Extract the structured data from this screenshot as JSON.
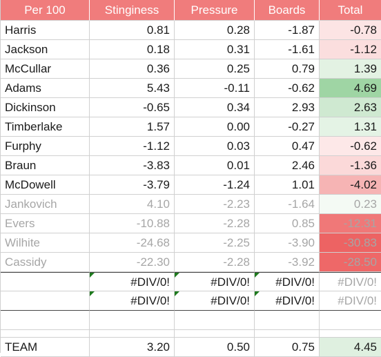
{
  "columns": [
    "Per 100",
    "Stinginess",
    "Pressure",
    "Boards",
    "Total"
  ],
  "rows": [
    {
      "name": "Harris",
      "stinginess": "0.81",
      "pressure": "0.28",
      "boards": "-1.87",
      "total": "-0.78",
      "total_color": "#fce4e4",
      "gray": false
    },
    {
      "name": "Jackson",
      "stinginess": "0.18",
      "pressure": "0.31",
      "boards": "-1.61",
      "total": "-1.12",
      "total_color": "#fbdede",
      "gray": false
    },
    {
      "name": "McCullar",
      "stinginess": "0.36",
      "pressure": "0.25",
      "boards": "0.79",
      "total": "1.39",
      "total_color": "#e3f2e3",
      "gray": false
    },
    {
      "name": "Adams",
      "stinginess": "5.43",
      "pressure": "-0.11",
      "boards": "-0.62",
      "total": "4.69",
      "total_color": "#9fd5a4",
      "gray": false
    },
    {
      "name": "Dickinson",
      "stinginess": "-0.65",
      "pressure": "0.34",
      "boards": "2.93",
      "total": "2.63",
      "total_color": "#cfe9d1",
      "gray": false
    },
    {
      "name": "Timberlake",
      "stinginess": "1.57",
      "pressure": "0.00",
      "boards": "-0.27",
      "total": "1.31",
      "total_color": "#e4f3e5",
      "gray": false
    },
    {
      "name": "Furphy",
      "stinginess": "-1.12",
      "pressure": "0.03",
      "boards": "0.47",
      "total": "-0.62",
      "total_color": "#fde8e8",
      "gray": false
    },
    {
      "name": "Braun",
      "stinginess": "-3.83",
      "pressure": "0.01",
      "boards": "2.46",
      "total": "-1.36",
      "total_color": "#fbd9d9",
      "gray": false
    },
    {
      "name": "McDowell",
      "stinginess": "-3.79",
      "pressure": "-1.24",
      "boards": "1.01",
      "total": "-4.02",
      "total_color": "#f6b4b4",
      "gray": false
    },
    {
      "name": "Jankovich",
      "stinginess": "4.10",
      "pressure": "-2.23",
      "boards": "-1.64",
      "total": "0.23",
      "total_color": "#f4faf4",
      "gray": true
    },
    {
      "name": "Evers",
      "stinginess": "-10.88",
      "pressure": "-2.28",
      "boards": "0.85",
      "total": "-12.31",
      "total_color": "#f07878",
      "gray": true
    },
    {
      "name": "Wilhite",
      "stinginess": "-24.68",
      "pressure": "-2.25",
      "boards": "-3.90",
      "total": "-30.83",
      "total_color": "#ed6363",
      "gray": true
    },
    {
      "name": "Cassidy",
      "stinginess": "-22.30",
      "pressure": "-2.28",
      "boards": "-3.92",
      "total": "-28.50",
      "total_color": "#ee6868",
      "gray": true
    }
  ],
  "error_rows": [
    {
      "stinginess": "#DIV/0!",
      "pressure": "#DIV/0!",
      "boards": "#DIV/0!",
      "total": "#DIV/0!"
    },
    {
      "stinginess": "#DIV/0!",
      "pressure": "#DIV/0!",
      "boards": "#DIV/0!",
      "total": "#DIV/0!"
    }
  ],
  "team": {
    "name": "TEAM",
    "stinginess": "3.20",
    "pressure": "0.50",
    "boards": "0.75",
    "total": "4.45",
    "total_color": "#dff0e0"
  }
}
